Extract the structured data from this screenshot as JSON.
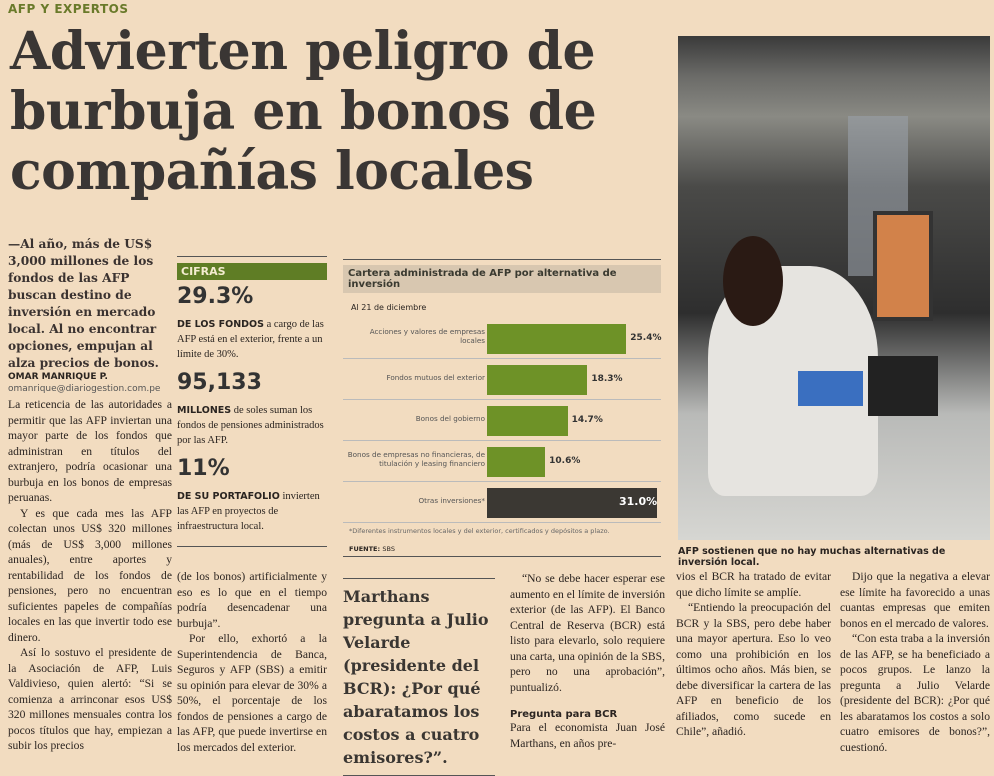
{
  "section": "AFP Y EXPERTOS",
  "headline": "Advierten peligro de burbuja en bonos de compañías locales",
  "lead": "—Al año, más de US$ 3,000 millones de los fondos de las AFP buscan destino de inversión en mercado local. Al no encontrar opciones, empujan al alza precios de bonos.",
  "byline": {
    "name": "OMAR MANRIQUE P.",
    "email": "omanrique@diariogestion.com.pe"
  },
  "col1": [
    "La reticencia de las autoridades a permitir que las AFP inviertan una mayor parte de los fondos que administran en títulos del extranjero, podría ocasionar una burbuja en los bonos de empresas peruanas.",
    "Y es que cada mes las AFP colectan unos US$ 320 millones (más de US$ 3,000 millones anuales), entre aportes y rentabilidad de los fondos de pensiones, pero no encuentran suficientes papeles de compañías locales en las que invertir todo ese dinero.",
    "Así lo sostuvo el presidente de la Asociación de AFP, Luis Valdivieso, quien alertó: “Si se comienza a arrinconar esos US$ 320 millones mensuales contra los pocos títulos que hay, empiezan a subir los precios"
  ],
  "cifras": {
    "tag": "CIFRAS",
    "items": [
      {
        "big": "29.3%",
        "lead": "DE LOS FONDOS",
        "text": " a cargo de las AFP está en el exterior, frente a un límite de 30%."
      },
      {
        "big": "95,133",
        "lead": "MILLONES",
        "text": " de soles suman los fondos de pensiones administrados por las AFP."
      },
      {
        "big": "11%",
        "lead": "DE SU PORTAFOLIO",
        "text": " invierten las AFP en proyectos de infraestructura local."
      }
    ]
  },
  "col2": [
    "(de los bonos) artificialmente y eso es lo que en el tiempo podría desencadenar una burbuja”.",
    "Por ello, exhortó a la Superintendencia de Banca, Seguros y AFP (SBS) a emitir su opinión para elevar de 30% a 50%, el porcentaje de los fondos de pensiones a cargo de las AFP, que puede invertirse en los mercados del exterior."
  ],
  "chart_data": {
    "type": "bar",
    "orientation": "horizontal",
    "title": "Cartera administrada de AFP por alternativa de inversión",
    "subtitle": "Al 21 de diciembre",
    "categories": [
      "Acciones y valores de empresas locales",
      "Fondos mutuos del exterior",
      "Bonos del gobierno",
      "Bonos de empresas no financieras, de titulación y leasing financiero",
      "Otras inversiones*"
    ],
    "values": [
      25.4,
      18.3,
      14.7,
      10.6,
      31.0
    ],
    "labels": [
      "25.4%",
      "18.3%",
      "14.7%",
      "10.6%",
      "31.0%"
    ],
    "colors": [
      "#6e9227",
      "#6e9227",
      "#6e9227",
      "#6e9227",
      "#3b3833"
    ],
    "note": "*Diferentes instrumentos locales y del exterior, certificados y depósitos a plazo.",
    "source_label": "FUENTE:",
    "source": "SBS"
  },
  "pullquote": "Marthans pregunta a Julio Velarde (presidente del BCR): ¿Por qué abaratamos los costos a cuatro emisores?”.",
  "col4": {
    "p1": "“No se debe hacer esperar ese aumento en el límite de inversión exterior (de las AFP). El Banco Central de Reserva (BCR) está listo para elevarlo, solo requiere una carta, una opinión de la SBS, pero no una aprobación”, puntualizó.",
    "subhead": "Pregunta para BCR",
    "p2": "Para el economista Juan José Marthans, en años pre-"
  },
  "photo_caption": "AFP sostienen que no hay muchas alternativas de inversión local.",
  "col5": [
    "vios el BCR ha tratado de evitar que dicho límite se amplíe.",
    "“Entiendo la preocupación del BCR y la SBS, pero debe haber una mayor apertura. Eso lo veo como una prohibición en los últimos ocho años. Más bien, se debe diversificar la cartera de las AFP en beneficio de los afiliados, como sucede en Chile”, añadió."
  ],
  "col6": [
    "Dijo que la negativa a elevar ese límite ha favorecido a unas cuantas empresas que emiten bonos en el mercado de valores.",
    "“Con esta traba a la inversión de las AFP, se ha beneficiado a pocos grupos. Le lanzo la pregunta a Julio Velarde (presidente del BCR): ¿Por qué les abaratamos los costos a solo cuatro emisores de bonos?”, cuestionó."
  ]
}
